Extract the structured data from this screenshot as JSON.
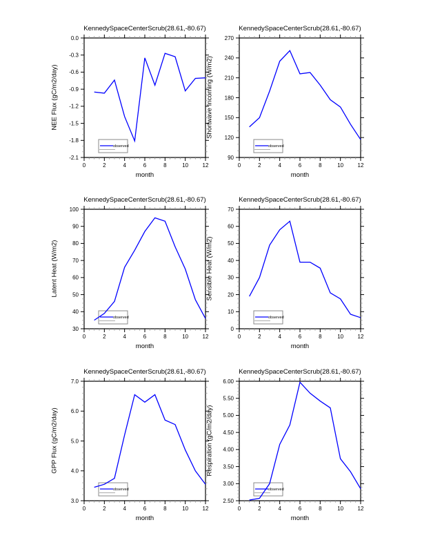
{
  "figure": {
    "background": "#ffffff",
    "line_color": "#0000ff",
    "legend_label": "observed",
    "panel_grid": "3 rows x 2 columns"
  },
  "chart_data": [
    {
      "type": "line",
      "title": "KennedySpaceCenterScrub(28.61,-80.67)",
      "xlabel": "month",
      "ylabel": "NEE Flux (gC/m2/day)",
      "x": [
        1,
        2,
        3,
        4,
        5,
        6,
        7,
        8,
        9,
        10,
        11,
        12
      ],
      "xlim": [
        0,
        12
      ],
      "xticks": [
        0,
        2,
        4,
        6,
        8,
        10,
        12
      ],
      "x_minor_step": 0.5,
      "ylim": [
        -2.1,
        0.0
      ],
      "yticks": [
        0.0,
        -0.3,
        -0.6,
        -0.9,
        -1.2,
        -1.5,
        -1.8,
        -2.1
      ],
      "ytick_labels": [
        "0.0",
        "-0.3",
        "-0.6",
        "-0.9",
        "-1.2",
        "-1.5",
        "-1.8",
        "-2.1"
      ],
      "y_minor_per_gap": 2,
      "grid": false,
      "legend": {
        "label": "observed",
        "position": "lower-left"
      },
      "series": [
        {
          "name": "observed",
          "color": "#0000ff",
          "values": [
            -0.95,
            -0.97,
            -0.74,
            -1.38,
            -1.81,
            -0.35,
            -0.83,
            -0.27,
            -0.33,
            -0.93,
            -0.71,
            -0.7
          ]
        }
      ]
    },
    {
      "type": "line",
      "title": "KennedySpaceCenterScrub(28.61,-80.67)",
      "xlabel": "month",
      "ylabel": "Shortwave Incoming (W/m2)",
      "x": [
        1,
        2,
        3,
        4,
        5,
        6,
        7,
        8,
        9,
        10,
        11,
        12
      ],
      "xlim": [
        0,
        12
      ],
      "xticks": [
        0,
        2,
        4,
        6,
        8,
        10,
        12
      ],
      "x_minor_step": 0.5,
      "ylim": [
        90,
        270
      ],
      "yticks": [
        270,
        240,
        210,
        180,
        150,
        120,
        90
      ],
      "ytick_labels": [
        "270",
        "240",
        "210",
        "180",
        "150",
        "120",
        "90"
      ],
      "y_minor_per_gap": 2,
      "grid": false,
      "legend": {
        "label": "observed",
        "position": "lower-left"
      },
      "series": [
        {
          "name": "observed",
          "color": "#0000ff",
          "values": [
            136,
            150,
            190,
            235,
            251,
            216,
            218,
            199,
            177,
            166,
            140,
            117
          ]
        }
      ]
    },
    {
      "type": "line",
      "title": "KennedySpaceCenterScrub(28.61,-80.67)",
      "xlabel": "month",
      "ylabel": "Latent Heat (W/m2)",
      "x": [
        1,
        2,
        3,
        4,
        5,
        6,
        7,
        8,
        9,
        10,
        11,
        12
      ],
      "xlim": [
        0,
        12
      ],
      "xticks": [
        0,
        2,
        4,
        6,
        8,
        10,
        12
      ],
      "x_minor_step": 0.5,
      "ylim": [
        30,
        100
      ],
      "yticks": [
        100,
        90,
        80,
        70,
        60,
        50,
        40,
        30
      ],
      "ytick_labels": [
        "100",
        "90",
        "80",
        "70",
        "60",
        "50",
        "40",
        "30"
      ],
      "y_minor_per_gap": 3,
      "grid": false,
      "legend": {
        "label": "observed",
        "position": "lower-left"
      },
      "series": [
        {
          "name": "observed",
          "color": "#0000ff",
          "values": [
            35,
            39,
            46,
            66,
            76,
            87,
            95,
            93,
            78,
            65,
            47,
            36
          ]
        }
      ]
    },
    {
      "type": "line",
      "title": "KennedySpaceCenterScrub(28.61,-80.67)",
      "xlabel": "month",
      "ylabel": "Sensible Heat (W/m2)",
      "x": [
        1,
        2,
        3,
        4,
        5,
        6,
        7,
        8,
        9,
        10,
        11,
        12
      ],
      "xlim": [
        0,
        12
      ],
      "xticks": [
        0,
        2,
        4,
        6,
        8,
        10,
        12
      ],
      "x_minor_step": 0.5,
      "ylim": [
        0,
        70
      ],
      "yticks": [
        70,
        60,
        50,
        40,
        30,
        20,
        10,
        0
      ],
      "ytick_labels": [
        "70",
        "60",
        "50",
        "40",
        "30",
        "20",
        "10",
        "0"
      ],
      "y_minor_per_gap": 3,
      "grid": false,
      "legend": {
        "label": "observed",
        "position": "lower-left"
      },
      "series": [
        {
          "name": "observed",
          "color": "#0000ff",
          "values": [
            19,
            30,
            49,
            58,
            63,
            39,
            39,
            35.5,
            21,
            17.5,
            8.5,
            6.5
          ]
        }
      ]
    },
    {
      "type": "line",
      "title": "KennedySpaceCenterScrub(28.61,-80.67)",
      "xlabel": "month",
      "ylabel": "GPP Flux (gC/m2/day)",
      "x": [
        1,
        2,
        3,
        4,
        5,
        6,
        7,
        8,
        9,
        10,
        11,
        12
      ],
      "xlim": [
        0,
        12
      ],
      "xticks": [
        0,
        2,
        4,
        6,
        8,
        10,
        12
      ],
      "x_minor_step": 0.5,
      "ylim": [
        3.0,
        7.0
      ],
      "yticks": [
        7.0,
        6.0,
        5.0,
        4.0,
        3.0
      ],
      "ytick_labels": [
        "7.0",
        "6.0",
        "5.0",
        "4.0",
        "3.0"
      ],
      "y_minor_per_gap": 4,
      "grid": false,
      "legend": {
        "label": "observed",
        "position": "lower-left"
      },
      "series": [
        {
          "name": "observed",
          "color": "#0000ff",
          "values": [
            3.45,
            3.55,
            3.75,
            5.2,
            6.55,
            6.3,
            6.55,
            5.7,
            5.55,
            4.7,
            4.0,
            3.55
          ]
        }
      ]
    },
    {
      "type": "line",
      "title": "KennedySpaceCenterScrub(28.61,-80.67)",
      "xlabel": "month",
      "ylabel": "Respiration (gC/m2/day)",
      "x": [
        1,
        2,
        3,
        4,
        5,
        6,
        7,
        8,
        9,
        10,
        11,
        12
      ],
      "xlim": [
        0,
        12
      ],
      "xticks": [
        0,
        2,
        4,
        6,
        8,
        10,
        12
      ],
      "x_minor_step": 0.5,
      "ylim": [
        2.5,
        6.0
      ],
      "yticks": [
        6.0,
        5.5,
        5.0,
        4.5,
        4.0,
        3.5,
        3.0,
        2.5
      ],
      "ytick_labels": [
        "6.00",
        "5.50",
        "5.00",
        "4.50",
        "4.00",
        "3.50",
        "3.00",
        "2.50"
      ],
      "y_minor_per_gap": 4,
      "grid": false,
      "legend": {
        "label": "observed",
        "position": "lower-left"
      },
      "series": [
        {
          "name": "observed",
          "color": "#0000ff",
          "values": [
            2.52,
            2.57,
            3.0,
            4.15,
            4.72,
            5.97,
            5.65,
            5.42,
            5.22,
            3.73,
            3.35,
            2.85
          ]
        }
      ]
    }
  ]
}
